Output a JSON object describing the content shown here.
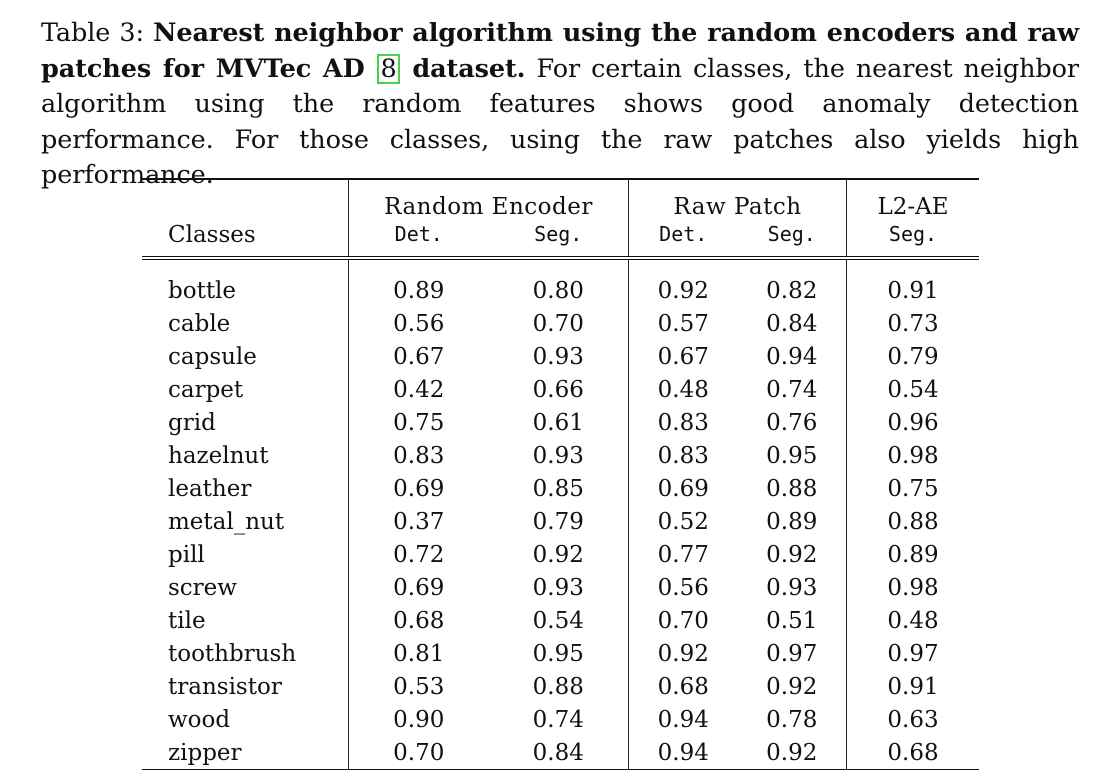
{
  "caption": {
    "label": "Table 3: ",
    "bold_part1": "Nearest neighbor algorithm using the random encoders and raw patches for MVTec AD ",
    "cite": "8",
    "bold_part2": " dataset.",
    "rest": " For certain classes, the nearest neighbor algorithm using the random features shows good anomaly detection performance. For those classes, using the raw patches also yields high performance."
  },
  "table": {
    "group_headers": [
      "Random Encoder",
      "Raw Patch",
      "L2-AE"
    ],
    "class_header": "Classes",
    "sub_headers": [
      "Det.",
      "Seg.",
      "Det.",
      "Seg.",
      "Seg."
    ],
    "rows": [
      {
        "cls": "bottle",
        "v": [
          "0.89",
          "0.80",
          "0.92",
          "0.82",
          "0.91"
        ],
        "b": [
          false,
          false,
          true,
          false,
          false
        ]
      },
      {
        "cls": "cable",
        "v": [
          "0.56",
          "0.70",
          "0.57",
          "0.84",
          "0.73"
        ],
        "b": [
          false,
          false,
          false,
          false,
          false
        ]
      },
      {
        "cls": "capsule",
        "v": [
          "0.67",
          "0.93",
          "0.67",
          "0.94",
          "0.79"
        ],
        "b": [
          false,
          true,
          false,
          true,
          false
        ]
      },
      {
        "cls": "carpet",
        "v": [
          "0.42",
          "0.66",
          "0.48",
          "0.74",
          "0.54"
        ],
        "b": [
          false,
          false,
          false,
          false,
          false
        ]
      },
      {
        "cls": "grid",
        "v": [
          "0.75",
          "0.61",
          "0.83",
          "0.76",
          "0.96"
        ],
        "b": [
          false,
          false,
          false,
          false,
          false
        ]
      },
      {
        "cls": "hazelnut",
        "v": [
          "0.83",
          "0.93",
          "0.83",
          "0.95",
          "0.98"
        ],
        "b": [
          false,
          true,
          false,
          true,
          false
        ]
      },
      {
        "cls": "leather",
        "v": [
          "0.69",
          "0.85",
          "0.69",
          "0.88",
          "0.75"
        ],
        "b": [
          false,
          false,
          false,
          false,
          false
        ]
      },
      {
        "cls": "metal_nut",
        "v": [
          "0.37",
          "0.79",
          "0.52",
          "0.89",
          "0.88"
        ],
        "b": [
          false,
          false,
          false,
          false,
          false
        ]
      },
      {
        "cls": "pill",
        "v": [
          "0.72",
          "0.92",
          "0.77",
          "0.92",
          "0.89"
        ],
        "b": [
          false,
          true,
          false,
          true,
          false
        ]
      },
      {
        "cls": "screw",
        "v": [
          "0.69",
          "0.93",
          "0.56",
          "0.93",
          "0.98"
        ],
        "b": [
          false,
          true,
          false,
          true,
          false
        ]
      },
      {
        "cls": "tile",
        "v": [
          "0.68",
          "0.54",
          "0.70",
          "0.51",
          "0.48"
        ],
        "b": [
          false,
          false,
          false,
          false,
          false
        ]
      },
      {
        "cls": "toothbrush",
        "v": [
          "0.81",
          "0.95",
          "0.92",
          "0.97",
          "0.97"
        ],
        "b": [
          false,
          true,
          true,
          true,
          false
        ]
      },
      {
        "cls": "transistor",
        "v": [
          "0.53",
          "0.88",
          "0.68",
          "0.92",
          "0.91"
        ],
        "b": [
          false,
          false,
          false,
          true,
          false
        ]
      },
      {
        "cls": "wood",
        "v": [
          "0.90",
          "0.74",
          "0.94",
          "0.78",
          "0.63"
        ],
        "b": [
          true,
          false,
          true,
          false,
          false
        ]
      },
      {
        "cls": "zipper",
        "v": [
          "0.70",
          "0.84",
          "0.94",
          "0.92",
          "0.68"
        ],
        "b": [
          false,
          false,
          true,
          true,
          false
        ]
      }
    ]
  }
}
